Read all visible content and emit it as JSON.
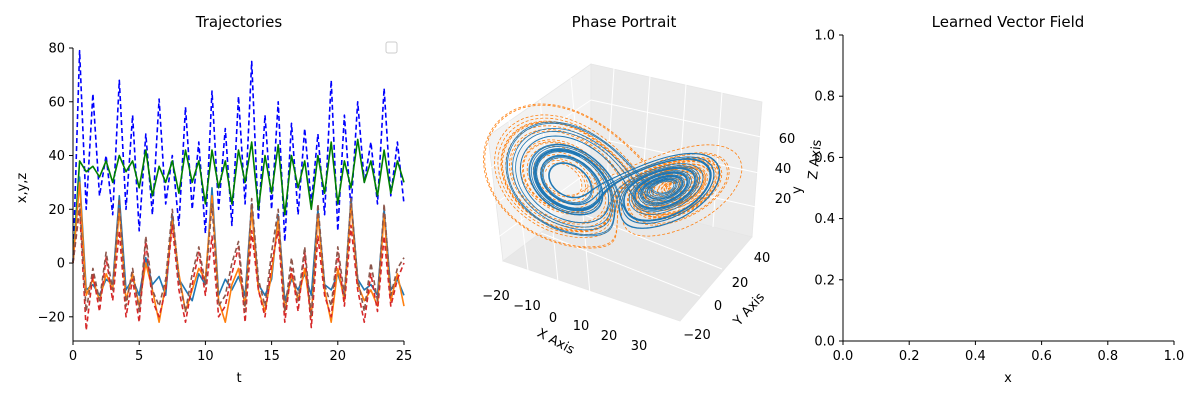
{
  "chart_data": [
    {
      "type": "line",
      "title": "Trajectories",
      "xlabel": "t",
      "ylabel": "x,y,z",
      "xlim": [
        0,
        25
      ],
      "ylim": [
        -29,
        80
      ],
      "xticks": [
        0,
        5,
        10,
        15,
        20,
        25
      ],
      "yticks": [
        -20,
        0,
        20,
        40,
        60,
        80
      ],
      "grid": false,
      "legend": {
        "placement": "top-right",
        "entries": []
      },
      "series": [
        {
          "color": "#0000ff",
          "style": "dashed",
          "x": [
            0,
            0.5,
            1,
            1.5,
            2,
            2.5,
            3,
            3.5,
            4,
            4.5,
            5,
            5.5,
            6,
            6.5,
            7,
            7.5,
            8,
            8.5,
            9,
            9.5,
            10,
            10.5,
            11,
            11.5,
            12,
            12.5,
            13,
            13.5,
            14,
            14.5,
            15,
            15.5,
            16,
            16.5,
            17,
            17.5,
            18,
            18.5,
            19,
            19.5,
            20,
            20.5,
            21,
            21.5,
            22,
            22.5,
            23,
            23.5,
            24,
            24.5,
            25
          ],
          "y": [
            0,
            79,
            20,
            63,
            25,
            40,
            18,
            68,
            20,
            55,
            12,
            48,
            18,
            61,
            22,
            40,
            14,
            58,
            20,
            45,
            11,
            64,
            20,
            50,
            14,
            62,
            22,
            75,
            16,
            55,
            20,
            60,
            8,
            52,
            18,
            50,
            22,
            48,
            18,
            68,
            12,
            55,
            20,
            60,
            30,
            45,
            22,
            65,
            25,
            45,
            22
          ]
        },
        {
          "color": "#008000",
          "style": "solid",
          "x": [
            0,
            0.5,
            1,
            1.5,
            2,
            2.5,
            3,
            3.5,
            4,
            4.5,
            5,
            5.5,
            6,
            6.5,
            7,
            7.5,
            8,
            8.5,
            9,
            9.5,
            10,
            10.5,
            11,
            11.5,
            12,
            12.5,
            13,
            13.5,
            14,
            14.5,
            15,
            15.5,
            16,
            16.5,
            17,
            17.5,
            18,
            18.5,
            19,
            19.5,
            20,
            20.5,
            21,
            21.5,
            22,
            22.5,
            23,
            23.5,
            24,
            24.5,
            25
          ],
          "y": [
            0,
            38,
            34,
            36,
            32,
            38,
            30,
            40,
            34,
            38,
            28,
            42,
            25,
            36,
            30,
            38,
            26,
            42,
            30,
            38,
            22,
            42,
            28,
            38,
            22,
            42,
            30,
            45,
            20,
            40,
            26,
            44,
            18,
            40,
            28,
            38,
            20,
            40,
            26,
            45,
            22,
            38,
            28,
            46,
            30,
            38,
            25,
            42,
            26,
            38,
            30
          ]
        },
        {
          "color": "#1f77b4",
          "style": "solid",
          "x": [
            0,
            0.5,
            1,
            1.5,
            2,
            2.5,
            3,
            3.5,
            4,
            4.5,
            5,
            5.5,
            6,
            6.5,
            7,
            7.5,
            8,
            8.5,
            9,
            9.5,
            10,
            10.5,
            11,
            11.5,
            12,
            12.5,
            13,
            13.5,
            14,
            14.5,
            15,
            15.5,
            16,
            16.5,
            17,
            17.5,
            18,
            18.5,
            19,
            19.5,
            20,
            20.5,
            21,
            21.5,
            22,
            22.5,
            23,
            23.5,
            24,
            24.5,
            25
          ],
          "y": [
            0,
            32,
            -10,
            -8,
            -12,
            -6,
            -8,
            25,
            -10,
            -6,
            -12,
            2,
            -8,
            -5,
            -12,
            18,
            -6,
            -10,
            -14,
            -4,
            -8,
            28,
            -12,
            -6,
            -10,
            -5,
            -12,
            22,
            -8,
            -12,
            -6,
            18,
            -14,
            -6,
            -10,
            -4,
            -12,
            20,
            -8,
            -10,
            -4,
            -12,
            24,
            -6,
            -10,
            -8,
            -12,
            20,
            -10,
            -6,
            -12
          ]
        },
        {
          "color": "#ff7f0e",
          "style": "solid",
          "x": [
            0,
            0.5,
            1,
            1.5,
            2,
            2.5,
            3,
            3.5,
            4,
            4.5,
            5,
            5.5,
            6,
            6.5,
            7,
            7.5,
            8,
            8.5,
            9,
            9.5,
            10,
            10.5,
            11,
            11.5,
            12,
            12.5,
            13,
            13.5,
            14,
            14.5,
            15,
            15.5,
            16,
            16.5,
            17,
            17.5,
            18,
            18.5,
            19,
            19.5,
            20,
            20.5,
            21,
            21.5,
            22,
            22.5,
            23,
            23.5,
            24,
            24.5,
            25
          ],
          "y": [
            0,
            30,
            -12,
            -6,
            -14,
            -4,
            -10,
            20,
            -14,
            -4,
            -16,
            0,
            -10,
            -22,
            -8,
            16,
            -4,
            -18,
            -10,
            -2,
            -6,
            25,
            -14,
            -22,
            -8,
            -2,
            -16,
            20,
            -10,
            -18,
            -4,
            16,
            -18,
            -4,
            -14,
            -2,
            -20,
            18,
            -10,
            -22,
            -2,
            -14,
            22,
            -8,
            -14,
            -10,
            -16,
            18,
            -14,
            -4,
            -16
          ]
        },
        {
          "color": "#d62728",
          "style": "dashed",
          "x": [
            0,
            0.5,
            1,
            1.5,
            2,
            2.5,
            3,
            3.5,
            4,
            4.5,
            5,
            5.5,
            6,
            6.5,
            7,
            7.5,
            8,
            8.5,
            9,
            9.5,
            10,
            10.5,
            11,
            11.5,
            12,
            12.5,
            13,
            13.5,
            14,
            14.5,
            15,
            15.5,
            16,
            16.5,
            17,
            17.5,
            18,
            18.5,
            19,
            19.5,
            20,
            20.5,
            21,
            21.5,
            22,
            22.5,
            23,
            23.5,
            24,
            24.5,
            25
          ],
          "y": [
            0,
            20,
            -25,
            -4,
            -18,
            2,
            -14,
            12,
            -20,
            -6,
            -22,
            8,
            -14,
            -20,
            -10,
            14,
            -10,
            -22,
            -8,
            4,
            -12,
            10,
            -20,
            -16,
            -4,
            6,
            -22,
            12,
            -10,
            -20,
            0,
            12,
            -22,
            -2,
            -18,
            4,
            -24,
            10,
            -12,
            -20,
            4,
            -16,
            14,
            -10,
            -22,
            -4,
            -18,
            10,
            -16,
            -6,
            0
          ]
        },
        {
          "color": "#8c564b",
          "style": "dashed",
          "x": [
            0,
            0.5,
            1,
            1.5,
            2,
            2.5,
            3,
            3.5,
            4,
            4.5,
            5,
            5.5,
            6,
            6.5,
            7,
            7.5,
            8,
            8.5,
            9,
            9.5,
            10,
            10.5,
            11,
            11.5,
            12,
            12.5,
            13,
            13.5,
            14,
            14.5,
            15,
            15.5,
            16,
            16.5,
            17,
            17.5,
            18,
            18.5,
            19,
            19.5,
            20,
            20.5,
            21,
            21.5,
            22,
            22.5,
            23,
            23.5,
            24,
            24.5,
            25
          ],
          "y": [
            0,
            22,
            -18,
            -2,
            -14,
            4,
            -10,
            24,
            -16,
            -2,
            -18,
            10,
            -10,
            -16,
            -6,
            20,
            -6,
            -18,
            -4,
            6,
            -8,
            22,
            -16,
            -12,
            0,
            8,
            -18,
            24,
            -6,
            -16,
            4,
            20,
            -18,
            2,
            -14,
            6,
            -20,
            22,
            -8,
            -16,
            6,
            -12,
            24,
            -6,
            -18,
            0,
            -14,
            22,
            -12,
            -2,
            2
          ]
        }
      ]
    },
    {
      "type": "line",
      "title": "Phase Portrait",
      "projection": "3d",
      "xlabel": "X Axis",
      "ylabel": "Y Axis",
      "zlabel": "Z Axis",
      "extra_label": "y",
      "xticks": [
        -20,
        -10,
        0,
        10,
        20,
        30
      ],
      "yticks": [
        -20,
        0,
        20,
        40
      ],
      "zticks": [
        20,
        40,
        60
      ],
      "series": [
        {
          "color": "#1f77b4",
          "style": "solid",
          "shape": "lorenz-attractor",
          "x_range": [
            -20,
            22
          ],
          "y_range": [
            -25,
            30
          ],
          "z_range": [
            5,
            48
          ]
        },
        {
          "color": "#ff7f0e",
          "style": "dashed",
          "shape": "lorenz-attractor",
          "x_range": [
            -22,
            32
          ],
          "y_range": [
            -30,
            45
          ],
          "z_range": [
            5,
            62
          ]
        }
      ]
    },
    {
      "type": "scatter",
      "title": "Learned Vector Field",
      "xlabel": "x",
      "ylabel": "",
      "xlim": [
        0,
        1
      ],
      "ylim": [
        0,
        1
      ],
      "xticks": [
        "0.0",
        "0.2",
        "0.4",
        "0.6",
        "0.8",
        "1.0"
      ],
      "yticks": [
        "0.0",
        "0.2",
        "0.4",
        "0.6",
        "0.8",
        "1.0"
      ],
      "series": []
    }
  ]
}
